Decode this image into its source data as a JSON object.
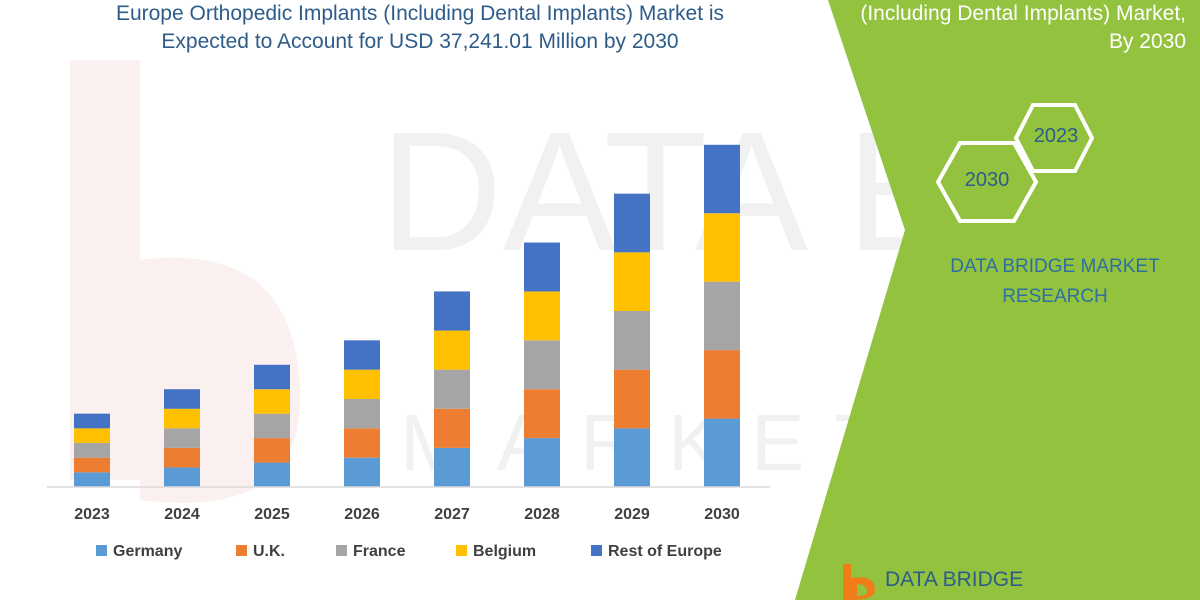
{
  "header": {
    "title_line1": "Europe Orthopedic Implants (Including Dental Implants) Market is",
    "title_line2": "Expected to Account for USD 37,241.01 Million by 2030"
  },
  "side_panel": {
    "title_line1": "(Including Dental Implants) Market,",
    "title_line2": "By 2030",
    "hex_front_label": "2030",
    "hex_back_label": "2023",
    "brand_line1": "DATA BRIDGE MARKET",
    "brand_line2": "RESEARCH",
    "panel_color": "#92c23e",
    "accent_color": "#2e5c8a"
  },
  "footer": {
    "logo_text": "DATA BRIDGE"
  },
  "watermark": {
    "word1": "DATA BRIDGE",
    "word2": "MARKET RESEARCH"
  },
  "chart_data": {
    "type": "bar",
    "stacked": true,
    "categories": [
      "2023",
      "2024",
      "2025",
      "2026",
      "2027",
      "2028",
      "2029",
      "2030"
    ],
    "series": [
      {
        "name": "Germany",
        "color": "#5b9bd5",
        "values": [
          3,
          4,
          5,
          6,
          8,
          10,
          12,
          14
        ]
      },
      {
        "name": "U.K.",
        "color": "#ed7d31",
        "values": [
          3,
          4,
          5,
          6,
          8,
          10,
          12,
          14
        ]
      },
      {
        "name": "France",
        "color": "#a5a5a5",
        "values": [
          3,
          4,
          5,
          6,
          8,
          10,
          12,
          14
        ]
      },
      {
        "name": "Belgium",
        "color": "#ffc000",
        "values": [
          3,
          4,
          5,
          6,
          8,
          10,
          12,
          14
        ]
      },
      {
        "name": "Rest of Europe",
        "color": "#4472c4",
        "values": [
          3,
          4,
          5,
          6,
          8,
          10,
          12,
          14
        ]
      }
    ],
    "ylim": [
      0,
      72
    ],
    "grid": false,
    "legend": "bottom"
  }
}
